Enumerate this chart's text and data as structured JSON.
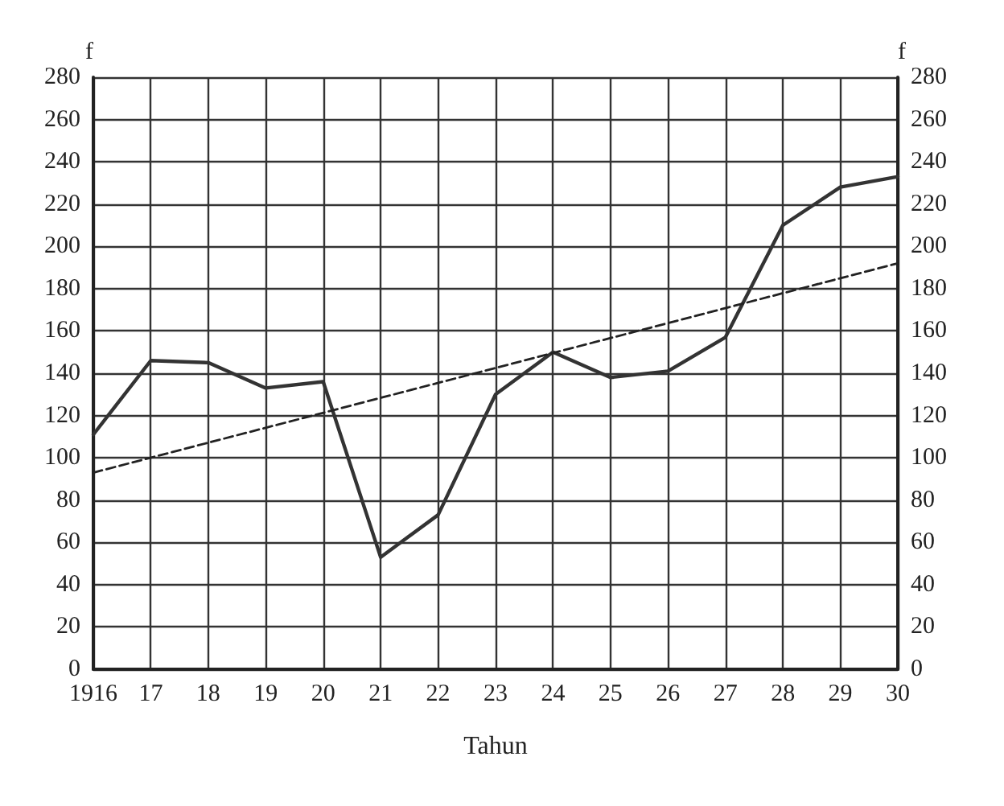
{
  "chart_data": {
    "type": "line",
    "xlabel": "Tahun",
    "ylabel": "f",
    "y2label": "f",
    "xlim": [
      1916,
      1930
    ],
    "xticks": [
      {
        "value": 1916,
        "label": "1916"
      },
      {
        "value": 1917,
        "label": "17"
      },
      {
        "value": 1918,
        "label": "18"
      },
      {
        "value": 1919,
        "label": "19"
      },
      {
        "value": 1920,
        "label": "20"
      },
      {
        "value": 1921,
        "label": "21"
      },
      {
        "value": 1922,
        "label": "22"
      },
      {
        "value": 1923,
        "label": "23"
      },
      {
        "value": 1924,
        "label": "24"
      },
      {
        "value": 1925,
        "label": "25"
      },
      {
        "value": 1926,
        "label": "26"
      },
      {
        "value": 1927,
        "label": "27"
      },
      {
        "value": 1928,
        "label": "28"
      },
      {
        "value": 1929,
        "label": "29"
      },
      {
        "value": 1930,
        "label": "30"
      }
    ],
    "ylim": [
      0,
      280
    ],
    "yticks": [
      0,
      20,
      40,
      60,
      80,
      100,
      120,
      140,
      160,
      180,
      200,
      220,
      240,
      260,
      280
    ],
    "y2lim": [
      0,
      280
    ],
    "y2ticks": [
      0,
      20,
      40,
      60,
      80,
      100,
      120,
      140,
      160,
      180,
      200,
      220,
      240,
      260,
      280
    ],
    "x": [
      1916,
      1917,
      1918,
      1919,
      1920,
      1921,
      1922,
      1923,
      1924,
      1925,
      1926,
      1927,
      1928,
      1929,
      1930
    ],
    "series": [
      {
        "color": "#333333",
        "values": [
          111,
          146,
          145,
          133,
          136,
          53,
          73,
          130,
          150,
          138,
          141,
          157,
          210,
          228,
          233
        ]
      },
      {
        "type": "line",
        "color": "#222222",
        "line_style": "dashed",
        "x": [
          1916,
          1930
        ],
        "values": [
          93,
          192
        ]
      }
    ],
    "grid": true,
    "marker": "none"
  }
}
